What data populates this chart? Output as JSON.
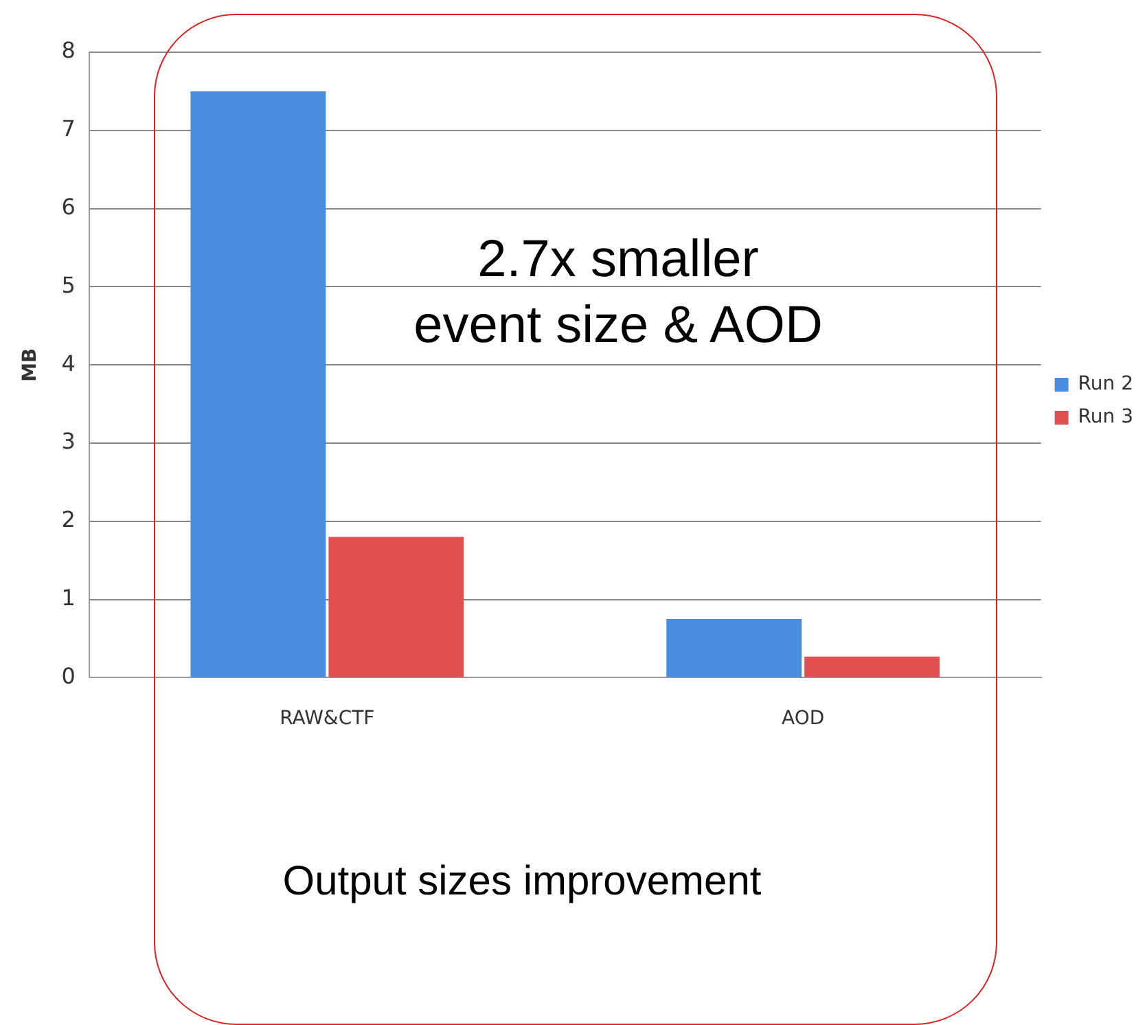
{
  "chart_data": {
    "type": "bar",
    "ylabel": "MB",
    "categories": [
      "RAW&CTF",
      "AOD"
    ],
    "series": [
      {
        "name": "Run 2",
        "color": "#4a8de0",
        "values": [
          7.5,
          0.75
        ]
      },
      {
        "name": "Run 3",
        "color": "#e0504f",
        "values": [
          1.8,
          0.27
        ]
      }
    ],
    "ylim": [
      0,
      8
    ],
    "yticks": [
      0,
      1,
      2,
      3,
      4,
      5,
      6,
      7,
      8
    ],
    "grid": "y",
    "legend": "right",
    "annotations": [
      "2.7x smaller event size & AOD",
      "Output sizes improvement"
    ]
  }
}
